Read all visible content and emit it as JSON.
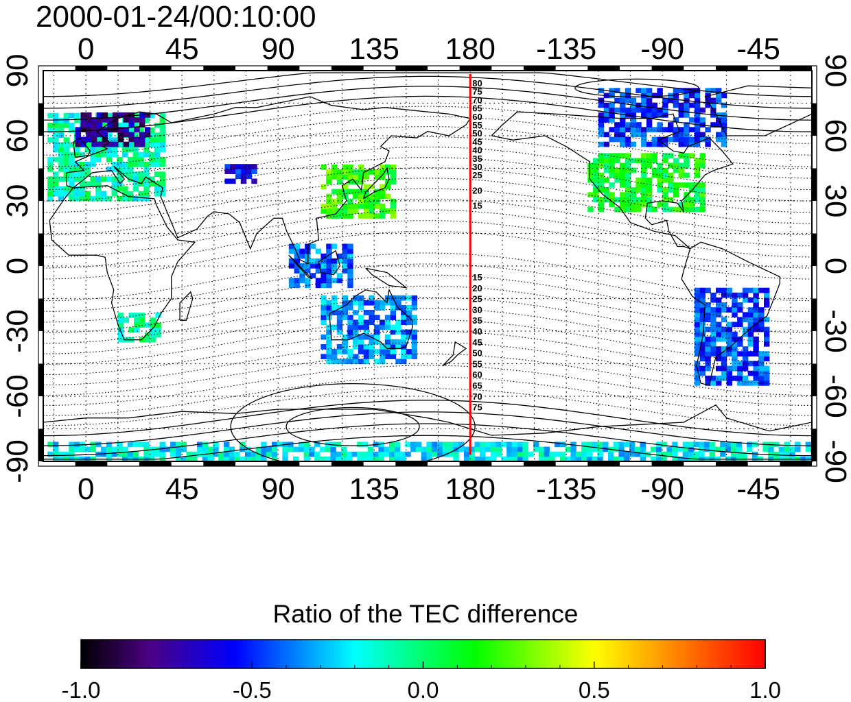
{
  "map": {
    "title": "2000-01-24/00:10:00",
    "x_axis": {
      "ticks": [
        {
          "lon": 0,
          "label": "0"
        },
        {
          "lon": 45,
          "label": "45"
        },
        {
          "lon": 90,
          "label": "90"
        },
        {
          "lon": 135,
          "label": "135"
        },
        {
          "lon": 180,
          "label": "180"
        },
        {
          "lon": 225,
          "label": "-135"
        },
        {
          "lon": 270,
          "label": "-90"
        },
        {
          "lon": 315,
          "label": "-45"
        }
      ],
      "range_deg": [
        -20,
        340
      ]
    },
    "y_axis": {
      "ticks": [
        {
          "lat": 90,
          "label": "90"
        },
        {
          "lat": 60,
          "label": "60"
        },
        {
          "lat": 30,
          "label": "30"
        },
        {
          "lat": 0,
          "label": "0"
        },
        {
          "lat": -30,
          "label": "-30"
        },
        {
          "lat": -60,
          "label": "-60"
        },
        {
          "lat": -90,
          "label": "-90"
        }
      ],
      "range_deg": [
        -90,
        90
      ]
    },
    "grid": "dotted",
    "terminator_line": {
      "lon": 180,
      "color": "#ff0000"
    },
    "contour_labels_north": [
      "80",
      "75",
      "70",
      "65",
      "60",
      "55",
      "50",
      "45",
      "40",
      "35",
      "30",
      "25",
      "20",
      "15"
    ],
    "contour_labels_south": [
      "15",
      "20",
      "25",
      "30",
      "35",
      "40",
      "45",
      "50",
      "55",
      "60",
      "65",
      "70",
      "75"
    ],
    "colors": {
      "frame": "#000000",
      "tick_bar": "#000000",
      "coast": "#000000",
      "red_line": "#ff0000"
    },
    "data_patches": [
      {
        "region": "europe",
        "lon": [
          -18,
          35
        ],
        "lat": [
          30,
          70
        ],
        "value": -0.1
      },
      {
        "region": "scandinavia",
        "lon": [
          -5,
          30
        ],
        "lat": [
          55,
          70
        ],
        "value": -0.75
      },
      {
        "region": "central-asia",
        "lon": [
          65,
          80
        ],
        "lat": [
          38,
          45
        ],
        "value": -0.55
      },
      {
        "region": "east-asia",
        "lon": [
          110,
          145
        ],
        "lat": [
          22,
          45
        ],
        "value": 0.2
      },
      {
        "region": "southeast-asia",
        "lon": [
          95,
          125
        ],
        "lat": [
          -10,
          10
        ],
        "value": -0.4
      },
      {
        "region": "australia",
        "lon": [
          110,
          155
        ],
        "lat": [
          -45,
          -15
        ],
        "value": -0.35
      },
      {
        "region": "south-africa",
        "lon": [
          15,
          35
        ],
        "lat": [
          -35,
          -22
        ],
        "value": -0.05
      },
      {
        "region": "north-america",
        "lon": [
          235,
          290
        ],
        "lat": [
          25,
          50
        ],
        "value": 0.1
      },
      {
        "region": "canada-arctic",
        "lon": [
          240,
          300
        ],
        "lat": [
          55,
          82
        ],
        "value": -0.5
      },
      {
        "region": "south-america",
        "lon": [
          285,
          320
        ],
        "lat": [
          -55,
          -10
        ],
        "value": -0.45
      },
      {
        "region": "antarctic-edge",
        "lon": [
          -18,
          340
        ],
        "lat": [
          -90,
          -83
        ],
        "value": -0.2
      }
    ]
  },
  "colorbar": {
    "title": "Ratio of the TEC difference",
    "min": -1.0,
    "max": 1.0,
    "ticks": [
      {
        "value": -1.0,
        "label": "-1.0"
      },
      {
        "value": -0.5,
        "label": "-0.5"
      },
      {
        "value": 0.0,
        "label": "0.0"
      },
      {
        "value": 0.5,
        "label": "0.5"
      },
      {
        "value": 1.0,
        "label": "1.0"
      }
    ],
    "gradient_stops": [
      {
        "value": -1.0,
        "color": "#000000"
      },
      {
        "value": -0.8,
        "color": "#4b0082"
      },
      {
        "value": -0.55,
        "color": "#0000ff"
      },
      {
        "value": -0.2,
        "color": "#00ffff"
      },
      {
        "value": 0.15,
        "color": "#00ff00"
      },
      {
        "value": 0.5,
        "color": "#ffff00"
      },
      {
        "value": 1.0,
        "color": "#ff0000"
      }
    ]
  }
}
